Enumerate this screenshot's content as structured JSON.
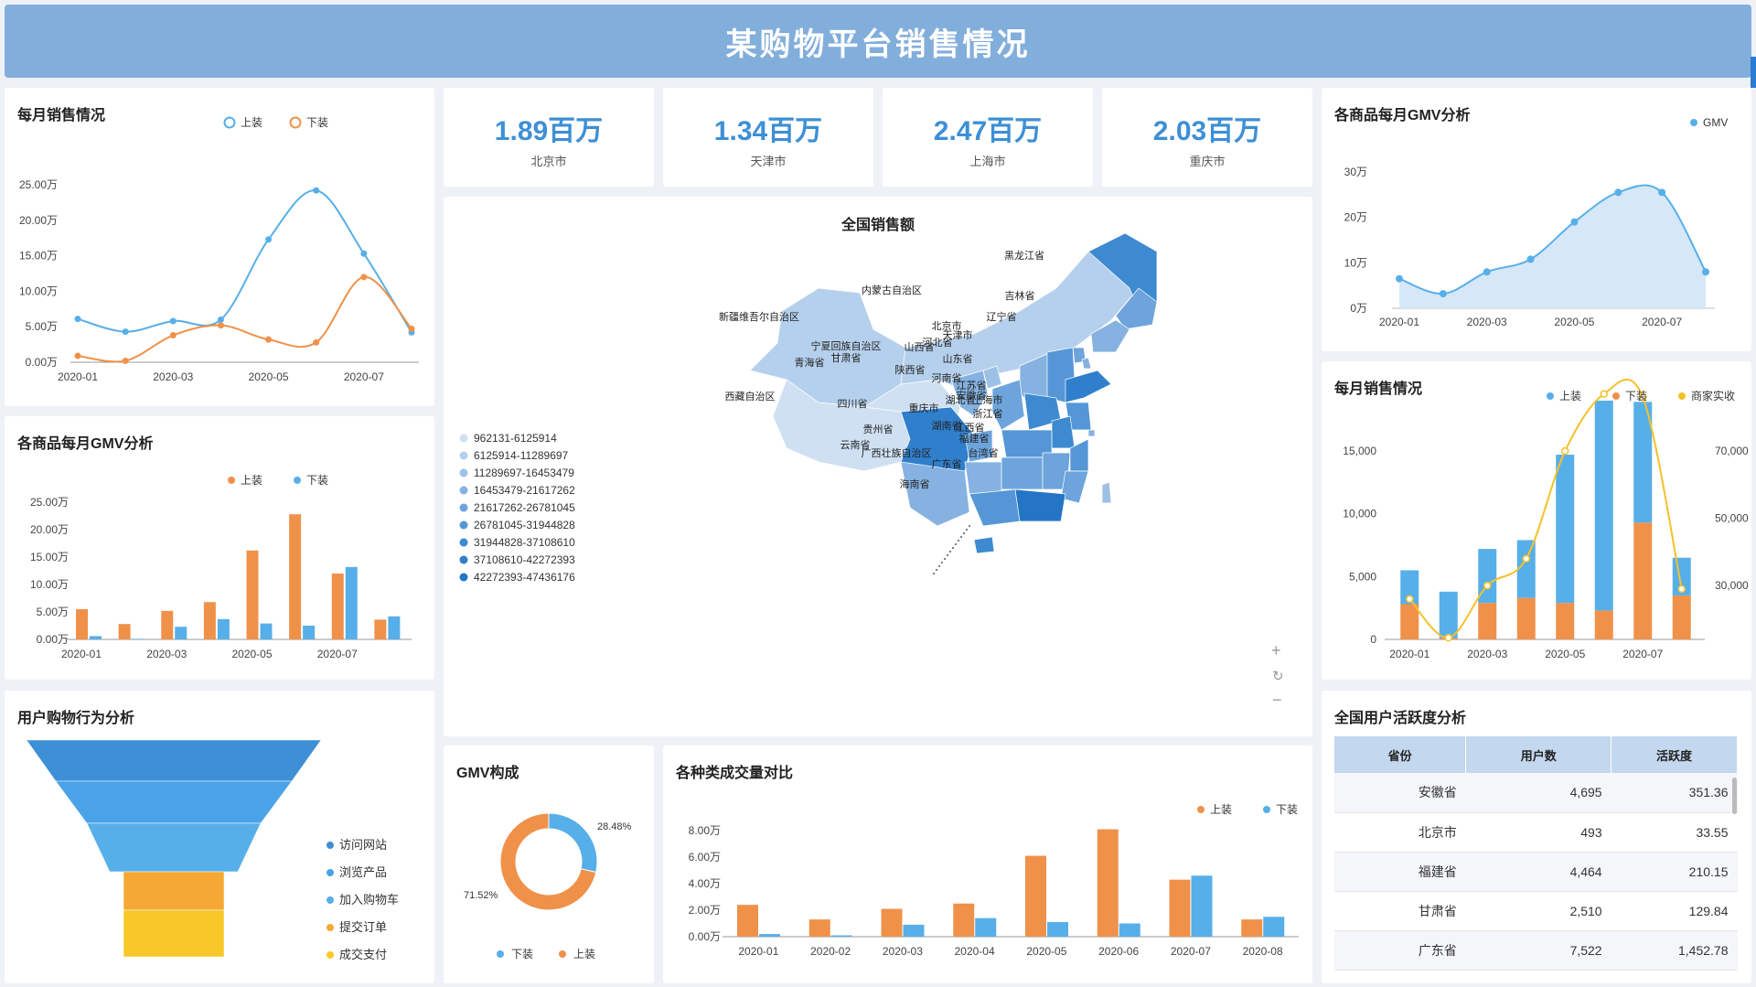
{
  "header": {
    "title": "某购物平台销售情况"
  },
  "colors": {
    "blue": "#57afe9",
    "orange": "#f0914a",
    "yellow": "#f5c129",
    "deepBlue": "#3d8fd6"
  },
  "kpis": [
    {
      "value": "1.89百万",
      "city": "北京市"
    },
    {
      "value": "1.34百万",
      "city": "天津市"
    },
    {
      "value": "2.47百万",
      "city": "上海市"
    },
    {
      "value": "2.03百万",
      "city": "重庆市"
    }
  ],
  "chart_data": [
    {
      "id": "monthly_sales_lines",
      "type": "line",
      "title": "每月销售情况",
      "x": [
        "2020-01",
        "2020-02",
        "2020-03",
        "2020-04",
        "2020-05",
        "2020-06",
        "2020-07",
        "2020-08"
      ],
      "xticks": [
        "2020-01",
        "2020-03",
        "2020-05",
        "2020-07"
      ],
      "yticks": [
        "0.00万",
        "5.00万",
        "10.00万",
        "15.00万",
        "20.00万",
        "25.00万"
      ],
      "ylim": [
        0,
        25
      ],
      "legend": "top-right",
      "series": [
        {
          "name": "上装",
          "color": "#57afe9",
          "values": [
            6.1,
            4.3,
            5.8,
            6.0,
            17.3,
            24.2,
            15.3,
            4.2
          ]
        },
        {
          "name": "下装",
          "color": "#f0914a",
          "values": [
            0.9,
            0.2,
            3.8,
            5.2,
            3.2,
            2.8,
            12.0,
            4.7
          ]
        }
      ]
    },
    {
      "id": "gmv_bars_left",
      "type": "bar",
      "title": "各商品每月GMV分析",
      "x": [
        "2020-01",
        "2020-02",
        "2020-03",
        "2020-04",
        "2020-05",
        "2020-06",
        "2020-07",
        "2020-08"
      ],
      "xticks": [
        "2020-01",
        "2020-03",
        "2020-05",
        "2020-07"
      ],
      "yticks": [
        "0.00万",
        "5.00万",
        "10.00万",
        "15.00万",
        "20.00万",
        "25.00万"
      ],
      "ylim": [
        0,
        25
      ],
      "legend": "top-right",
      "series": [
        {
          "name": "上装",
          "color": "#f0914a",
          "values": [
            5.5,
            2.8,
            5.2,
            6.8,
            16.2,
            22.8,
            12.0,
            3.6
          ]
        },
        {
          "name": "下装",
          "color": "#57afe9",
          "values": [
            0.6,
            0.1,
            2.3,
            3.7,
            2.9,
            2.5,
            13.2,
            4.2
          ]
        }
      ]
    },
    {
      "id": "funnel",
      "type": "funnel",
      "title": "用户购物行为分析",
      "stages": [
        {
          "name": "访问网站",
          "color": "#3d8fd6"
        },
        {
          "name": "浏览产品",
          "color": "#4aa3e8"
        },
        {
          "name": "加入购物车",
          "color": "#57afe9"
        },
        {
          "name": "提交订单",
          "color": "#f5a833"
        },
        {
          "name": "成交支付",
          "color": "#f8c729"
        }
      ]
    },
    {
      "id": "national_map",
      "type": "choropleth",
      "title": "全国销售额",
      "legend_ranges": [
        "962131-6125914",
        "6125914-11289697",
        "11289697-16453479",
        "16453479-21617262",
        "21617262-26781045",
        "26781045-31944828",
        "31944828-37108610",
        "37108610-42272393",
        "42272393-47436176"
      ],
      "legend_colors": [
        "#cfe0f2",
        "#b5d0ec",
        "#9dc1e6",
        "#85b2e0",
        "#6da4db",
        "#5596d6",
        "#3d8ad1",
        "#2f7fcc",
        "#2475c6"
      ],
      "labels": [
        "新疆维吾尔自治区",
        "西藏自治区",
        "青海省",
        "内蒙古自治区",
        "黑龙江省",
        "吉林省",
        "辽宁省",
        "北京市",
        "天津市",
        "河北省",
        "山西省",
        "山东省",
        "宁夏回族自治区",
        "甘肃省",
        "陕西省",
        "河南省",
        "江苏省",
        "安徽省",
        "上海市",
        "湖北省",
        "四川省",
        "重庆市",
        "浙江省",
        "湖南省",
        "江西省",
        "贵州省",
        "福建省",
        "云南省",
        "广西壮族自治区",
        "广东省",
        "台湾省",
        "海南省"
      ]
    },
    {
      "id": "gmv_area",
      "type": "area",
      "title": "各商品每月GMV分析",
      "x": [
        "2020-01",
        "2020-02",
        "2020-03",
        "2020-04",
        "2020-05",
        "2020-06",
        "2020-07",
        "2020-08"
      ],
      "xticks": [
        "2020-01",
        "2020-03",
        "2020-05",
        "2020-07"
      ],
      "yticks": [
        "0万",
        "10万",
        "20万",
        "30万"
      ],
      "ylim": [
        0,
        30
      ],
      "legend": "top-right",
      "series": [
        {
          "name": "GMV",
          "color": "#57afe9",
          "values": [
            6.5,
            3.2,
            8.0,
            10.8,
            19.0,
            25.5,
            25.5,
            8.0
          ]
        }
      ]
    },
    {
      "id": "monthly_stacked",
      "type": "bar",
      "title": "每月销售情况",
      "x": [
        "2020-01",
        "2020-02",
        "2020-03",
        "2020-04",
        "2020-05",
        "2020-06",
        "2020-07",
        "2020-08"
      ],
      "xticks": [
        "2020-01",
        "2020-03",
        "2020-05",
        "2020-07"
      ],
      "yticks": [
        "0",
        "5,000",
        "10,000",
        "15,000"
      ],
      "ylim": [
        0,
        19000
      ],
      "y2ticks": [
        "30,000",
        "50,000",
        "70,000"
      ],
      "y2lim": [
        14000,
        85000
      ],
      "legend": "top-right",
      "series": [
        {
          "name": "上装",
          "color": "#57afe9",
          "stack": "total",
          "values": [
            2700,
            3700,
            4300,
            4600,
            11800,
            16700,
            9600,
            3000
          ]
        },
        {
          "name": "下装",
          "color": "#f0914a",
          "stack": "total",
          "values": [
            2800,
            100,
            2900,
            3300,
            2900,
            2300,
            9300,
            3500
          ]
        },
        {
          "name": "商家实收",
          "color": "#f5c129",
          "type": "line",
          "axis": "right",
          "values": [
            26000,
            14500,
            30000,
            38000,
            70000,
            87000,
            86000,
            29000
          ]
        }
      ]
    },
    {
      "id": "gmv_donut",
      "type": "pie",
      "title": "GMV构成",
      "legend": "bottom",
      "slices": [
        {
          "name": "下装",
          "value": 28.48,
          "label": "28.48%",
          "color": "#57afe9"
        },
        {
          "name": "上装",
          "value": 71.52,
          "label": "71.52%",
          "color": "#f0914a"
        }
      ]
    },
    {
      "id": "category_bars",
      "type": "bar",
      "title": "各种类成交量对比",
      "x": [
        "2020-01",
        "2020-02",
        "2020-03",
        "2020-04",
        "2020-05",
        "2020-06",
        "2020-07",
        "2020-08"
      ],
      "xticks": [
        "2020-01",
        "2020-02",
        "2020-03",
        "2020-04",
        "2020-05",
        "2020-06",
        "2020-07",
        "2020-08"
      ],
      "yticks": [
        "0.00万",
        "2.00万",
        "4.00万",
        "6.00万",
        "8.00万"
      ],
      "ylim": [
        0,
        8
      ],
      "legend": "top-right",
      "series": [
        {
          "name": "上装",
          "color": "#f0914a",
          "values": [
            2.4,
            1.3,
            2.1,
            2.5,
            6.1,
            8.1,
            4.3,
            1.3
          ]
        },
        {
          "name": "下装",
          "color": "#57afe9",
          "values": [
            0.2,
            0.1,
            0.9,
            1.4,
            1.1,
            1.0,
            4.6,
            1.5
          ]
        }
      ]
    }
  ],
  "activity": {
    "title": "全国用户活跃度分析",
    "columns": [
      "省份",
      "用户数",
      "活跃度"
    ],
    "rows": [
      [
        "安徽省",
        "4,695",
        "351.36"
      ],
      [
        "北京市",
        "493",
        "33.55"
      ],
      [
        "福建省",
        "4,464",
        "210.15"
      ],
      [
        "甘肃省",
        "2,510",
        "129.84"
      ],
      [
        "广东省",
        "7,522",
        "1,452.78"
      ]
    ]
  }
}
